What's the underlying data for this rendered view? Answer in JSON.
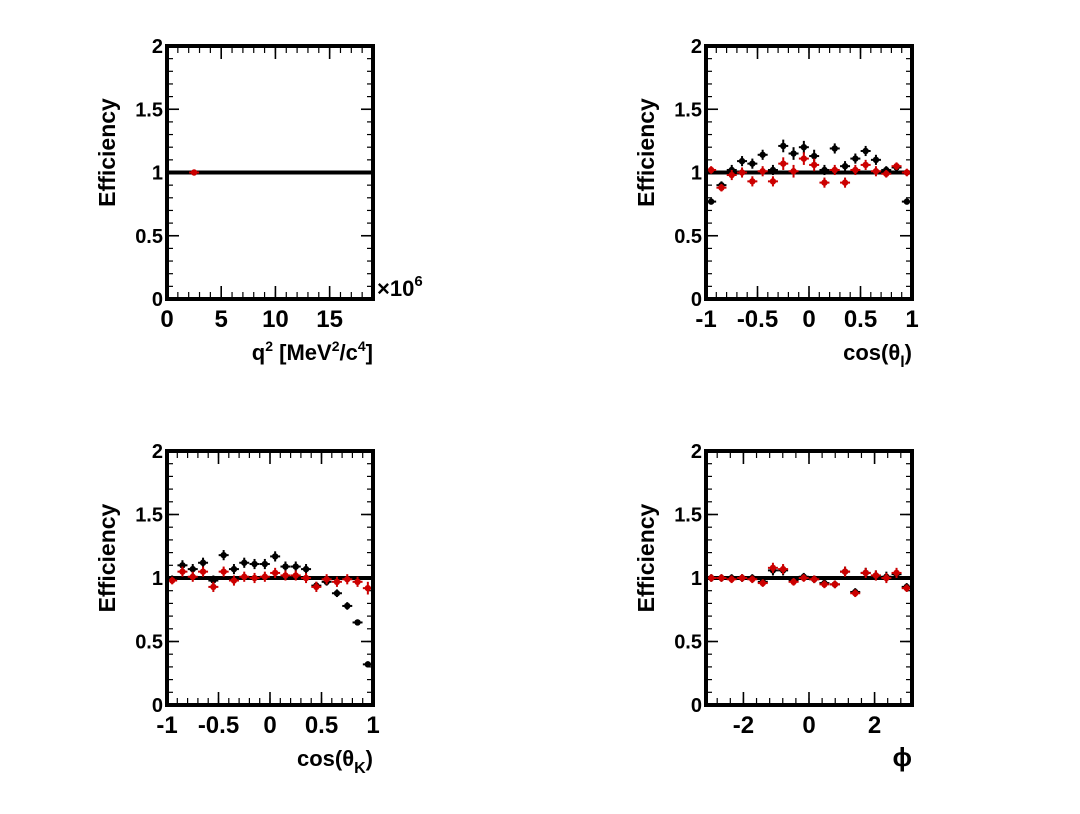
{
  "chart_data": [
    {
      "type": "scatter",
      "ylabel": "Efficiency",
      "xlabel_parts": [
        "q",
        "2",
        " [MeV",
        "2",
        "/c",
        "4",
        "]"
      ],
      "xlabel": "q2 [MeV2/c4]",
      "x_multiplier": "×10",
      "x_multiplier_exp": "6",
      "xlim": [
        0,
        19
      ],
      "ylim": [
        0,
        2
      ],
      "xticks": [
        0,
        5,
        10,
        15
      ],
      "xtick_labels": [
        "0",
        "5",
        "10",
        "15"
      ],
      "yticks": [
        0,
        0.5,
        1,
        1.5,
        2
      ],
      "ytick_labels": [
        "0",
        "0.5",
        "1",
        "1.5",
        "2"
      ],
      "reference_line": 1,
      "series": [
        {
          "color": "#000000",
          "points": []
        },
        {
          "color": "#cc0000",
          "points": [
            {
              "x": 2.5,
              "y": 1.0,
              "yerr": 0.01
            }
          ]
        }
      ]
    },
    {
      "type": "scatter",
      "ylabel": "Efficiency",
      "xlabel_parts": [
        "cos(θ",
        "l",
        ")"
      ],
      "xlabel": "cos(θl)",
      "xlim": [
        -1,
        1
      ],
      "ylim": [
        0,
        2
      ],
      "xticks": [
        -1,
        -0.5,
        0,
        0.5,
        1
      ],
      "xtick_labels": [
        "-1",
        "-0.5",
        "0",
        "0.5",
        "1"
      ],
      "yticks": [
        0,
        0.5,
        1,
        1.5,
        2
      ],
      "ytick_labels": [
        "0",
        "0.5",
        "1",
        "1.5",
        "2"
      ],
      "reference_line": 1,
      "series": [
        {
          "color": "#000000",
          "points": [
            {
              "x": -0.95,
              "y": 0.77,
              "yerr": 0.02
            },
            {
              "x": -0.85,
              "y": 0.9,
              "yerr": 0.03
            },
            {
              "x": -0.75,
              "y": 1.02,
              "yerr": 0.04
            },
            {
              "x": -0.65,
              "y": 1.09,
              "yerr": 0.04
            },
            {
              "x": -0.55,
              "y": 1.07,
              "yerr": 0.04
            },
            {
              "x": -0.45,
              "y": 1.14,
              "yerr": 0.04
            },
            {
              "x": -0.35,
              "y": 1.02,
              "yerr": 0.04
            },
            {
              "x": -0.25,
              "y": 1.21,
              "yerr": 0.05
            },
            {
              "x": -0.15,
              "y": 1.15,
              "yerr": 0.05
            },
            {
              "x": -0.05,
              "y": 1.2,
              "yerr": 0.05
            },
            {
              "x": 0.05,
              "y": 1.13,
              "yerr": 0.05
            },
            {
              "x": 0.15,
              "y": 1.02,
              "yerr": 0.04
            },
            {
              "x": 0.25,
              "y": 1.19,
              "yerr": 0.04
            },
            {
              "x": 0.35,
              "y": 1.05,
              "yerr": 0.04
            },
            {
              "x": 0.45,
              "y": 1.11,
              "yerr": 0.04
            },
            {
              "x": 0.55,
              "y": 1.17,
              "yerr": 0.04
            },
            {
              "x": 0.65,
              "y": 1.1,
              "yerr": 0.04
            },
            {
              "x": 0.75,
              "y": 1.02,
              "yerr": 0.03
            },
            {
              "x": 0.85,
              "y": 1.04,
              "yerr": 0.03
            },
            {
              "x": 0.95,
              "y": 0.77,
              "yerr": 0.02
            }
          ]
        },
        {
          "color": "#cc0000",
          "points": [
            {
              "x": -0.95,
              "y": 1.02,
              "yerr": 0.03
            },
            {
              "x": -0.85,
              "y": 0.88,
              "yerr": 0.03
            },
            {
              "x": -0.75,
              "y": 0.98,
              "yerr": 0.04
            },
            {
              "x": -0.65,
              "y": 1.0,
              "yerr": 0.04
            },
            {
              "x": -0.55,
              "y": 0.93,
              "yerr": 0.04
            },
            {
              "x": -0.45,
              "y": 1.01,
              "yerr": 0.04
            },
            {
              "x": -0.35,
              "y": 0.93,
              "yerr": 0.04
            },
            {
              "x": -0.25,
              "y": 1.07,
              "yerr": 0.05
            },
            {
              "x": -0.15,
              "y": 1.01,
              "yerr": 0.05
            },
            {
              "x": -0.05,
              "y": 1.11,
              "yerr": 0.05
            },
            {
              "x": 0.05,
              "y": 1.06,
              "yerr": 0.05
            },
            {
              "x": 0.15,
              "y": 0.92,
              "yerr": 0.04
            },
            {
              "x": 0.25,
              "y": 1.02,
              "yerr": 0.04
            },
            {
              "x": 0.35,
              "y": 0.92,
              "yerr": 0.04
            },
            {
              "x": 0.45,
              "y": 1.02,
              "yerr": 0.04
            },
            {
              "x": 0.55,
              "y": 1.06,
              "yerr": 0.04
            },
            {
              "x": 0.65,
              "y": 1.01,
              "yerr": 0.04
            },
            {
              "x": 0.75,
              "y": 0.99,
              "yerr": 0.03
            },
            {
              "x": 0.85,
              "y": 1.05,
              "yerr": 0.03
            },
            {
              "x": 0.95,
              "y": 1.0,
              "yerr": 0.03
            }
          ]
        }
      ]
    },
    {
      "type": "scatter",
      "ylabel": "Efficiency",
      "xlabel_parts": [
        "cos(θ",
        "K",
        ")"
      ],
      "xlabel": "cos(θK)",
      "xlim": [
        -1,
        1
      ],
      "ylim": [
        0,
        2
      ],
      "xticks": [
        -1,
        -0.5,
        0,
        0.5,
        1
      ],
      "xtick_labels": [
        "-1",
        "-0.5",
        "0",
        "0.5",
        "1"
      ],
      "yticks": [
        0,
        0.5,
        1,
        1.5,
        2
      ],
      "ytick_labels": [
        "0",
        "0.5",
        "1",
        "1.5",
        "2"
      ],
      "reference_line": 1,
      "series": [
        {
          "color": "#000000",
          "points": [
            {
              "x": -0.95,
              "y": 0.99,
              "yerr": 0.03
            },
            {
              "x": -0.85,
              "y": 1.1,
              "yerr": 0.04
            },
            {
              "x": -0.75,
              "y": 1.07,
              "yerr": 0.04
            },
            {
              "x": -0.65,
              "y": 1.12,
              "yerr": 0.04
            },
            {
              "x": -0.55,
              "y": 0.98,
              "yerr": 0.04
            },
            {
              "x": -0.45,
              "y": 1.18,
              "yerr": 0.04
            },
            {
              "x": -0.35,
              "y": 1.07,
              "yerr": 0.04
            },
            {
              "x": -0.25,
              "y": 1.12,
              "yerr": 0.04
            },
            {
              "x": -0.15,
              "y": 1.11,
              "yerr": 0.04
            },
            {
              "x": -0.05,
              "y": 1.11,
              "yerr": 0.04
            },
            {
              "x": 0.05,
              "y": 1.17,
              "yerr": 0.04
            },
            {
              "x": 0.15,
              "y": 1.09,
              "yerr": 0.04
            },
            {
              "x": 0.25,
              "y": 1.09,
              "yerr": 0.04
            },
            {
              "x": 0.35,
              "y": 1.07,
              "yerr": 0.04
            },
            {
              "x": 0.45,
              "y": 0.94,
              "yerr": 0.03
            },
            {
              "x": 0.55,
              "y": 0.97,
              "yerr": 0.03
            },
            {
              "x": 0.65,
              "y": 0.88,
              "yerr": 0.03
            },
            {
              "x": 0.75,
              "y": 0.78,
              "yerr": 0.03
            },
            {
              "x": 0.85,
              "y": 0.65,
              "yerr": 0.02
            },
            {
              "x": 0.95,
              "y": 0.32,
              "yerr": 0.01
            }
          ]
        },
        {
          "color": "#cc0000",
          "points": [
            {
              "x": -0.95,
              "y": 0.98,
              "yerr": 0.03
            },
            {
              "x": -0.85,
              "y": 1.05,
              "yerr": 0.04
            },
            {
              "x": -0.75,
              "y": 1.01,
              "yerr": 0.04
            },
            {
              "x": -0.65,
              "y": 1.05,
              "yerr": 0.04
            },
            {
              "x": -0.55,
              "y": 0.93,
              "yerr": 0.04
            },
            {
              "x": -0.45,
              "y": 1.05,
              "yerr": 0.04
            },
            {
              "x": -0.35,
              "y": 0.98,
              "yerr": 0.04
            },
            {
              "x": -0.25,
              "y": 1.01,
              "yerr": 0.04
            },
            {
              "x": -0.15,
              "y": 1.0,
              "yerr": 0.04
            },
            {
              "x": -0.05,
              "y": 1.01,
              "yerr": 0.04
            },
            {
              "x": 0.05,
              "y": 1.04,
              "yerr": 0.04
            },
            {
              "x": 0.15,
              "y": 1.02,
              "yerr": 0.04
            },
            {
              "x": 0.25,
              "y": 1.02,
              "yerr": 0.04
            },
            {
              "x": 0.35,
              "y": 1.0,
              "yerr": 0.04
            },
            {
              "x": 0.45,
              "y": 0.93,
              "yerr": 0.04
            },
            {
              "x": 0.55,
              "y": 0.99,
              "yerr": 0.04
            },
            {
              "x": 0.65,
              "y": 0.97,
              "yerr": 0.04
            },
            {
              "x": 0.75,
              "y": 0.99,
              "yerr": 0.04
            },
            {
              "x": 0.85,
              "y": 0.97,
              "yerr": 0.04
            },
            {
              "x": 0.95,
              "y": 0.92,
              "yerr": 0.05
            }
          ]
        }
      ]
    },
    {
      "type": "scatter",
      "ylabel": "Efficiency",
      "xlabel_parts": [
        "ϕ"
      ],
      "xlabel": "ϕ",
      "xlim": [
        -3.1416,
        3.1416
      ],
      "ylim": [
        0,
        2
      ],
      "xticks": [
        -2,
        0,
        2
      ],
      "xtick_labels": [
        "-2",
        "0",
        "2"
      ],
      "yticks": [
        0,
        0.5,
        1,
        1.5,
        2
      ],
      "ytick_labels": [
        "0",
        "0.5",
        "1",
        "1.5",
        "2"
      ],
      "reference_line": 1,
      "series": [
        {
          "color": "#000000",
          "points": [
            {
              "x": -2.98,
              "y": 1.0,
              "yerr": 0.03
            },
            {
              "x": -2.67,
              "y": 1.0,
              "yerr": 0.03
            },
            {
              "x": -2.36,
              "y": 1.0,
              "yerr": 0.03
            },
            {
              "x": -2.04,
              "y": 1.0,
              "yerr": 0.03
            },
            {
              "x": -1.73,
              "y": 1.0,
              "yerr": 0.03
            },
            {
              "x": -1.41,
              "y": 0.97,
              "yerr": 0.03
            },
            {
              "x": -1.1,
              "y": 1.06,
              "yerr": 0.04
            },
            {
              "x": -0.79,
              "y": 1.06,
              "yerr": 0.04
            },
            {
              "x": -0.47,
              "y": 0.98,
              "yerr": 0.03
            },
            {
              "x": -0.16,
              "y": 1.01,
              "yerr": 0.03
            },
            {
              "x": 0.16,
              "y": 0.99,
              "yerr": 0.03
            },
            {
              "x": 0.47,
              "y": 0.96,
              "yerr": 0.03
            },
            {
              "x": 0.79,
              "y": 0.95,
              "yerr": 0.03
            },
            {
              "x": 1.1,
              "y": 1.05,
              "yerr": 0.04
            },
            {
              "x": 1.41,
              "y": 0.89,
              "yerr": 0.03
            },
            {
              "x": 1.73,
              "y": 1.04,
              "yerr": 0.04
            },
            {
              "x": 2.04,
              "y": 1.02,
              "yerr": 0.04
            },
            {
              "x": 2.36,
              "y": 1.01,
              "yerr": 0.04
            },
            {
              "x": 2.67,
              "y": 1.03,
              "yerr": 0.04
            },
            {
              "x": 2.98,
              "y": 0.93,
              "yerr": 0.03
            }
          ]
        },
        {
          "color": "#cc0000",
          "points": [
            {
              "x": -2.98,
              "y": 1.0,
              "yerr": 0.03
            },
            {
              "x": -2.67,
              "y": 1.0,
              "yerr": 0.03
            },
            {
              "x": -2.36,
              "y": 0.99,
              "yerr": 0.03
            },
            {
              "x": -2.04,
              "y": 1.0,
              "yerr": 0.03
            },
            {
              "x": -1.73,
              "y": 0.99,
              "yerr": 0.03
            },
            {
              "x": -1.41,
              "y": 0.96,
              "yerr": 0.03
            },
            {
              "x": -1.1,
              "y": 1.08,
              "yerr": 0.04
            },
            {
              "x": -0.79,
              "y": 1.07,
              "yerr": 0.04
            },
            {
              "x": -0.47,
              "y": 0.97,
              "yerr": 0.03
            },
            {
              "x": -0.16,
              "y": 1.0,
              "yerr": 0.03
            },
            {
              "x": 0.16,
              "y": 0.99,
              "yerr": 0.03
            },
            {
              "x": 0.47,
              "y": 0.95,
              "yerr": 0.03
            },
            {
              "x": 0.79,
              "y": 0.95,
              "yerr": 0.03
            },
            {
              "x": 1.1,
              "y": 1.05,
              "yerr": 0.04
            },
            {
              "x": 1.41,
              "y": 0.88,
              "yerr": 0.03
            },
            {
              "x": 1.73,
              "y": 1.04,
              "yerr": 0.04
            },
            {
              "x": 2.04,
              "y": 1.02,
              "yerr": 0.04
            },
            {
              "x": 2.36,
              "y": 1.0,
              "yerr": 0.04
            },
            {
              "x": 2.67,
              "y": 1.04,
              "yerr": 0.04
            },
            {
              "x": 2.98,
              "y": 0.92,
              "yerr": 0.03
            }
          ]
        }
      ]
    }
  ]
}
